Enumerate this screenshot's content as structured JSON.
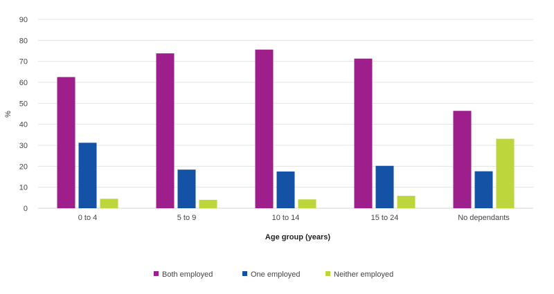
{
  "chart_data": {
    "type": "bar",
    "categories": [
      "0 to 4",
      "5 to 9",
      "10 to 14",
      "15 to 24",
      "No dependants"
    ],
    "series": [
      {
        "name": "Both employed",
        "color": "#9e1f8c",
        "values": [
          62.5,
          73.8,
          75.6,
          71.3,
          46.4
        ]
      },
      {
        "name": "One employed",
        "color": "#1452a6",
        "values": [
          31.2,
          18.4,
          17.5,
          20.2,
          17.6
        ]
      },
      {
        "name": "Neither employed",
        "color": "#bcd63b",
        "values": [
          4.5,
          4.0,
          4.2,
          5.9,
          33.1
        ]
      }
    ],
    "xlabel": "Age group (years)",
    "ylabel": "%",
    "ylim": [
      0,
      90
    ],
    "yticks": [
      "0",
      "10",
      "20",
      "30",
      "40",
      "50",
      "60",
      "70",
      "80",
      "90"
    ],
    "grid": true,
    "legend_position": "bottom"
  }
}
